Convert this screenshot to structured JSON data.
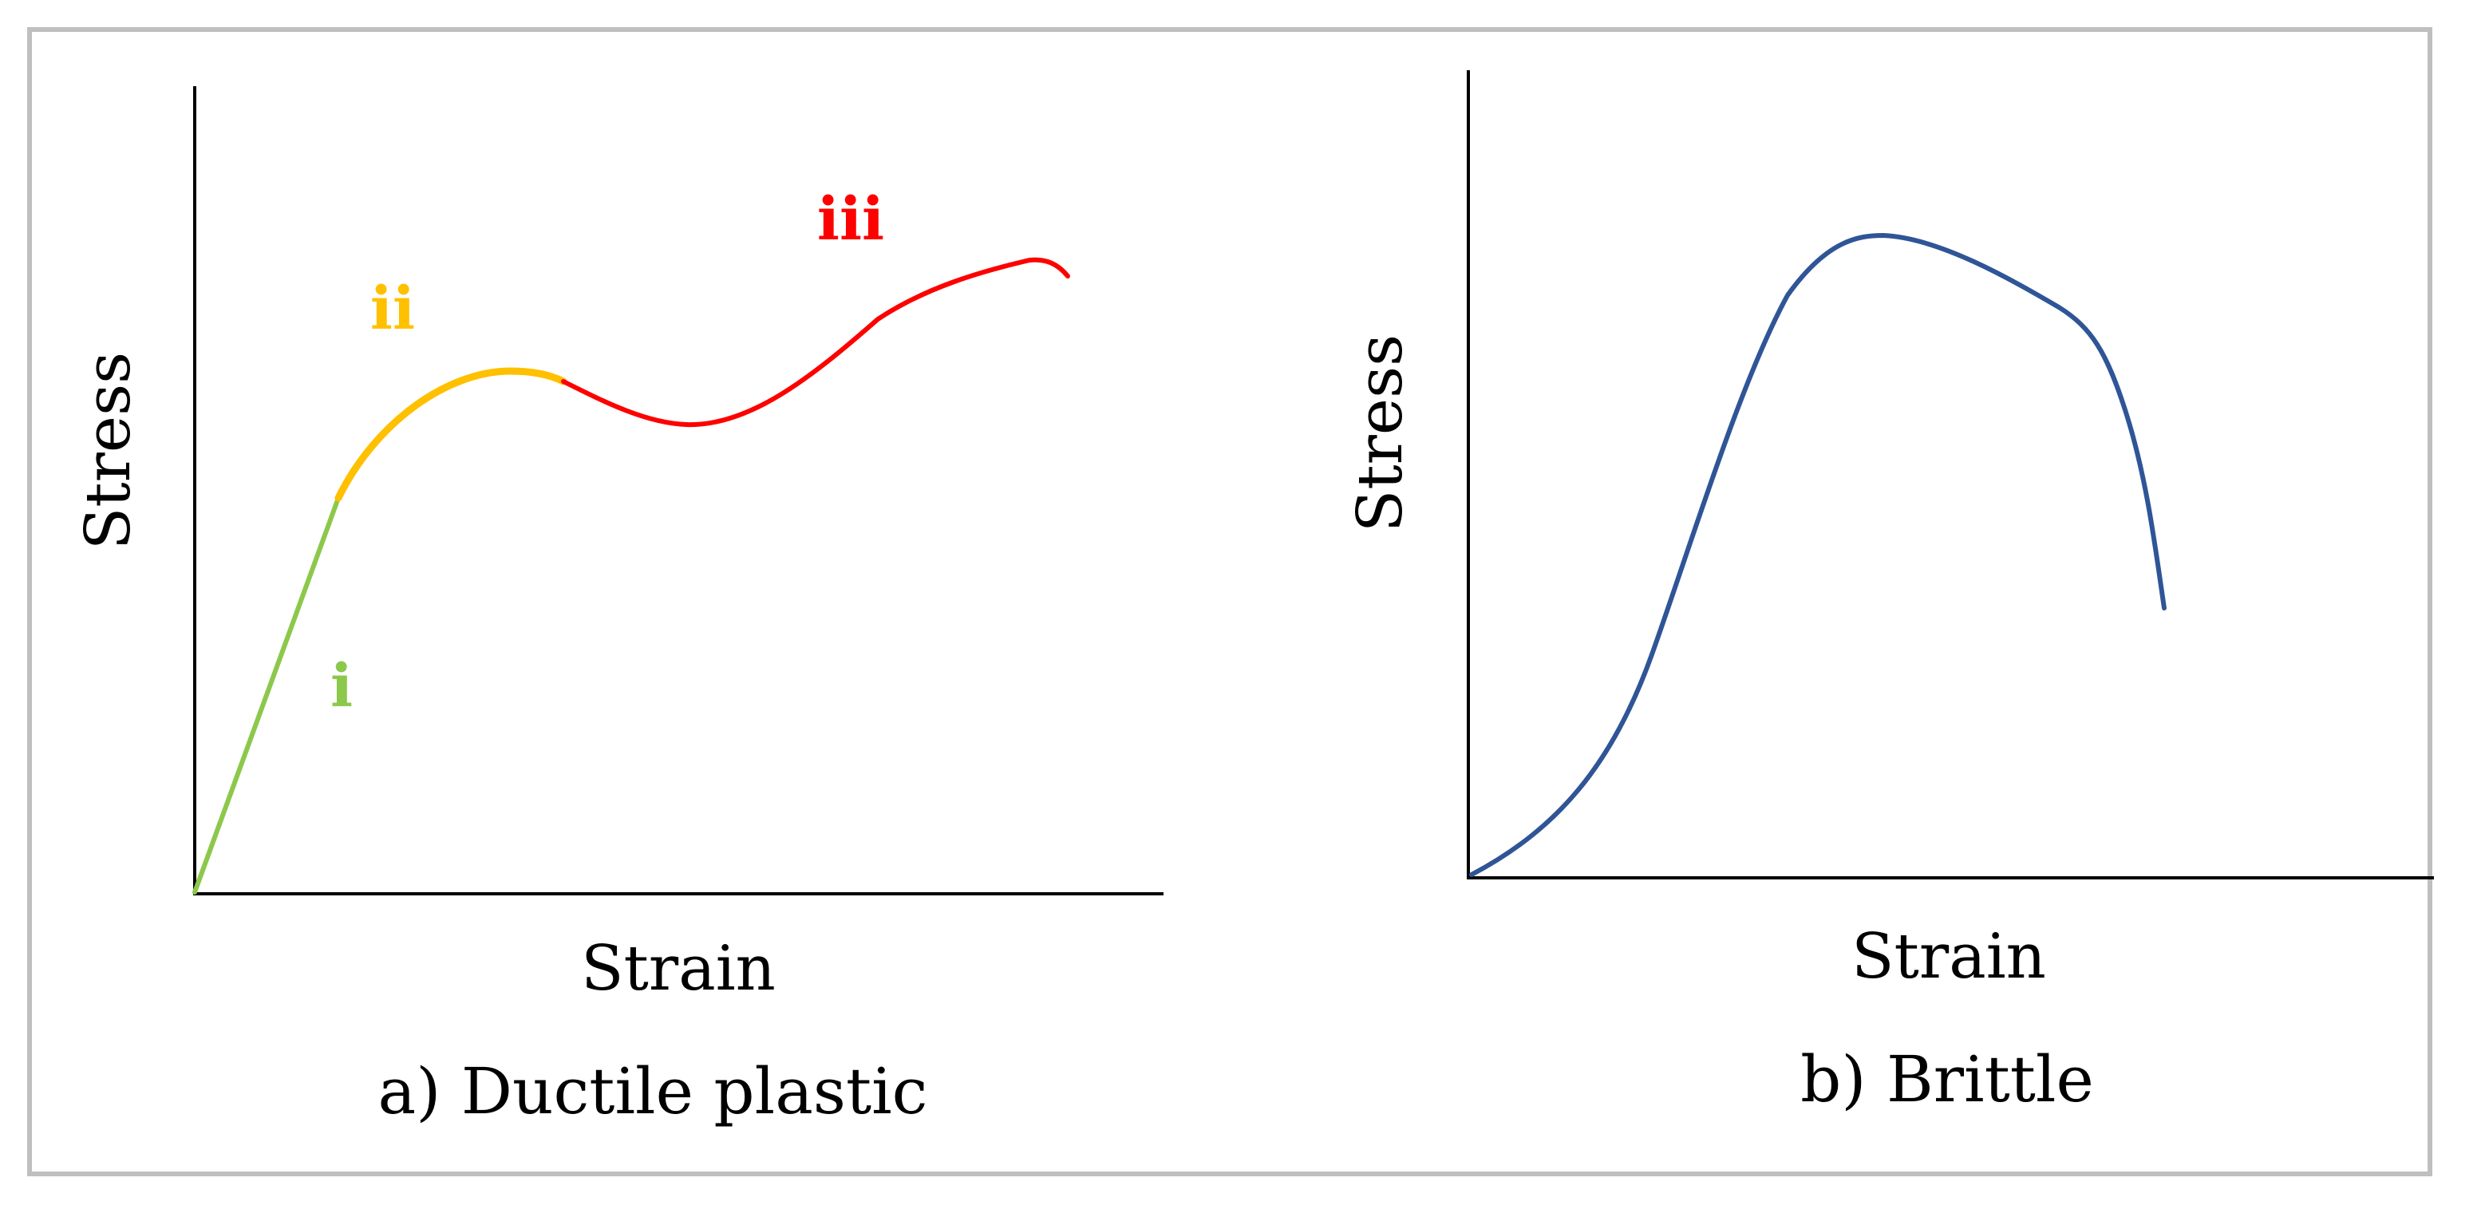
{
  "chart_data": [
    {
      "type": "line",
      "caption": "a) Ductile plastic",
      "xlabel": "Strain",
      "ylabel": "Stress",
      "ticks": "none",
      "regions": [
        {
          "label": "i",
          "color": "#8cc84b"
        },
        {
          "label": "ii",
          "color": "#ffc000"
        },
        {
          "label": "iii",
          "color": "#ff0000"
        }
      ]
    },
    {
      "type": "line",
      "caption": "b) Brittle",
      "xlabel": "Strain",
      "ylabel": "Stress",
      "ticks": "none",
      "line_color": "#2f5597"
    }
  ]
}
